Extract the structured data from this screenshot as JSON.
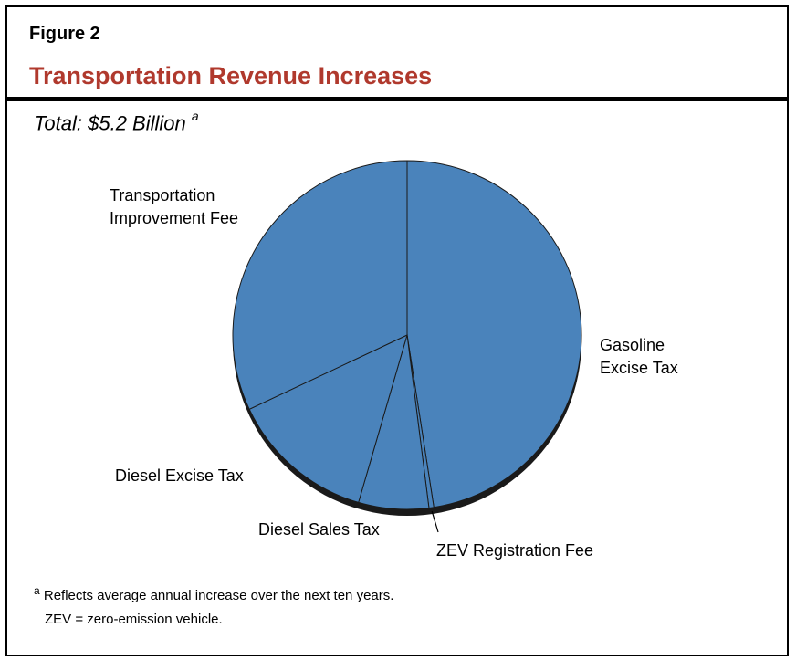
{
  "figure": {
    "label": "Figure 2",
    "title": "Transportation Revenue Increases",
    "total_text": "Total: $5.2 Billion",
    "total_superscript": "a"
  },
  "colors": {
    "title": "#b0392d",
    "slice_fill": "#4a83bb",
    "slice_stroke": "#1a1a1a",
    "shadow": "#1a1a1a"
  },
  "chart_data": {
    "type": "pie",
    "title": "Transportation Revenue Increases",
    "unit": "share of total",
    "slices": [
      {
        "label": "Gasoline Excise Tax",
        "value": 0.4755
      },
      {
        "label": "ZEV Registration Fee",
        "value": 0.0045
      },
      {
        "label": "Diesel Sales Tax",
        "value": 0.065
      },
      {
        "label": "Diesel Excise Tax",
        "value": 0.135
      },
      {
        "label": "Transportation Improvement Fee",
        "value": 0.32
      }
    ],
    "start_angle_deg": 0,
    "direction": "clockwise",
    "xlabel": "",
    "ylabel": ""
  },
  "footnotes": {
    "note_marker": "a",
    "note_text": "Reflects average annual increase over the next ten years.",
    "abbrev": "ZEV = zero-emission vehicle."
  }
}
